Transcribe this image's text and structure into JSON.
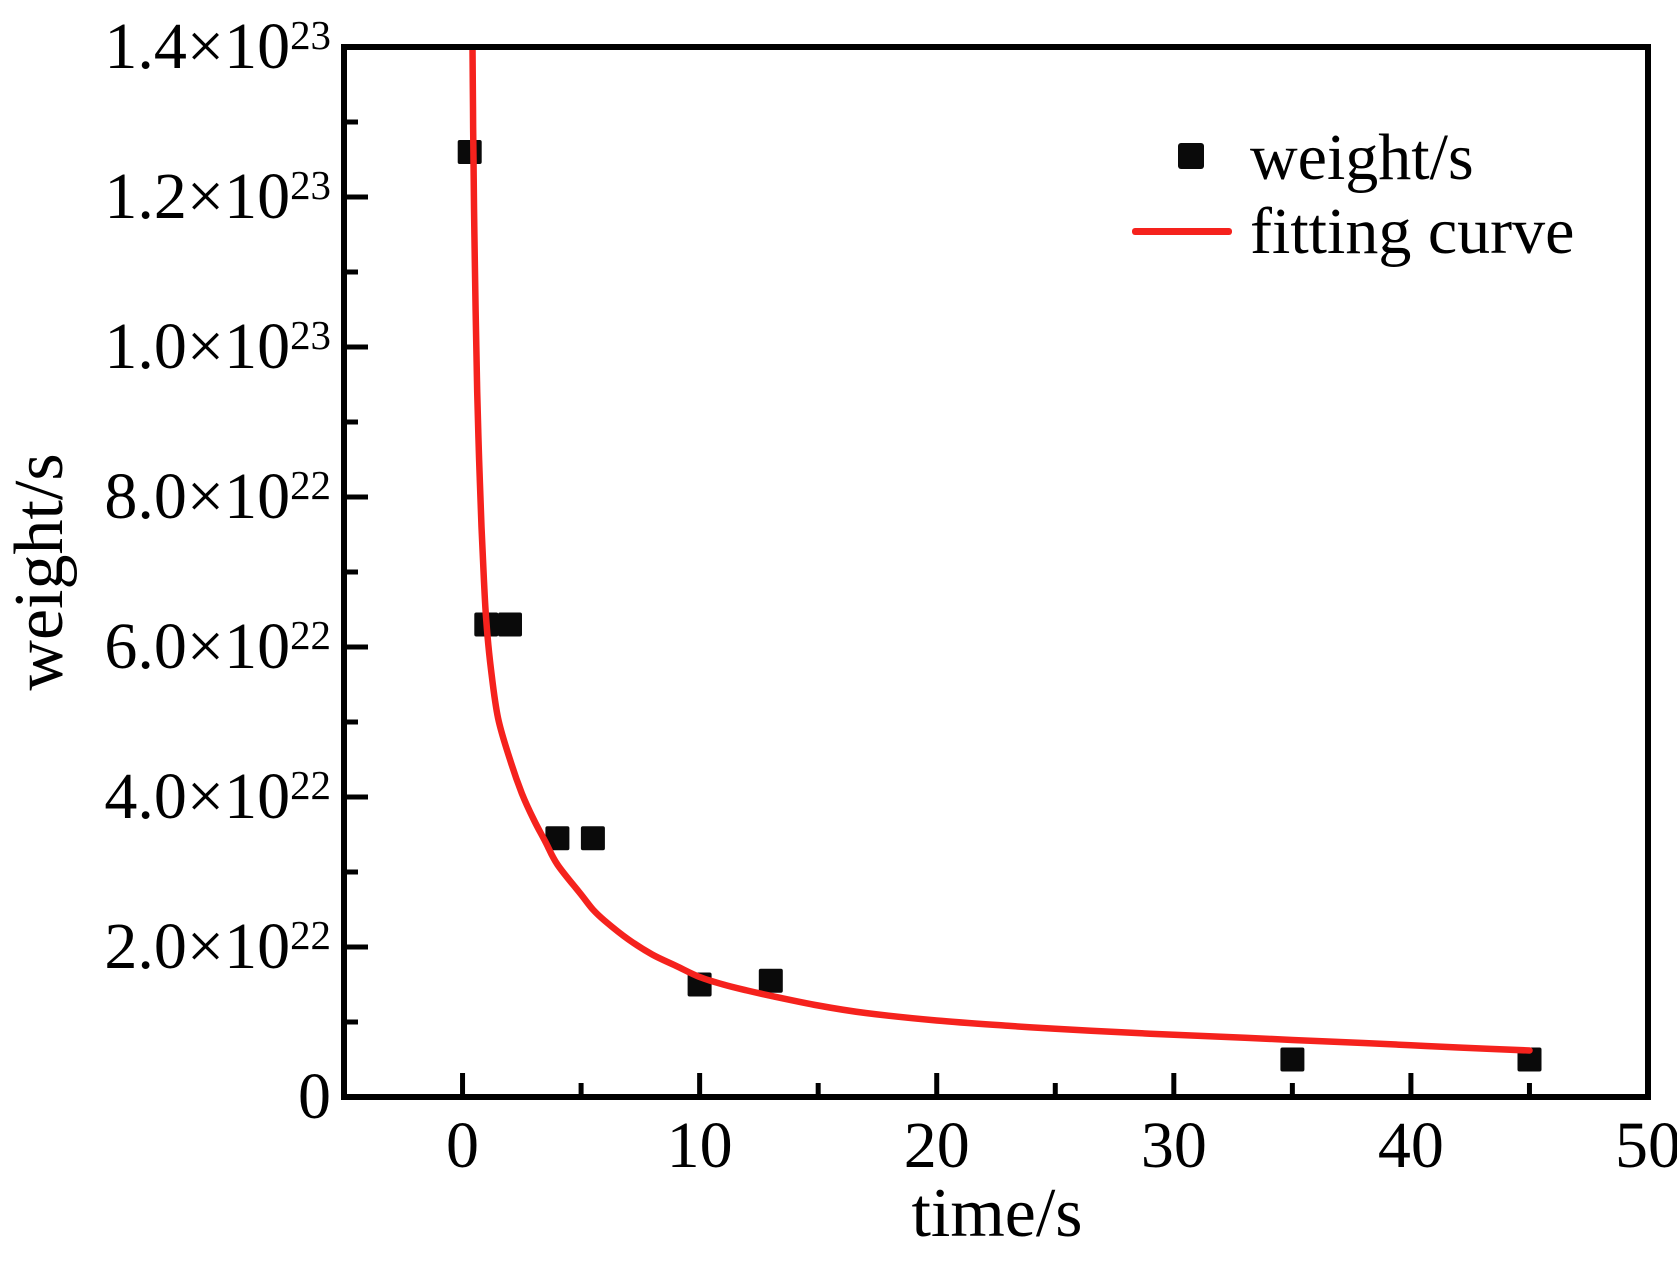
{
  "figure": {
    "background": "#ffffff",
    "axis_color": "#000000",
    "marker_color": "#0a0a0a",
    "curve_color": "#f5221d"
  },
  "legend": {
    "items": [
      {
        "label": "weight/s",
        "marker": "square",
        "color": "#0a0a0a"
      },
      {
        "label": "fitting curve",
        "marker": "line",
        "color": "#f5221d"
      }
    ]
  },
  "chart_data": {
    "type": "scatter",
    "title": "",
    "xlabel": "time/s",
    "ylabel": "weight/s",
    "xlim": [
      -5,
      50
    ],
    "ylim_e22": [
      0,
      14
    ],
    "grid": false,
    "legend_position": "upper-right-inside",
    "x_major_ticks": [
      {
        "v": 0,
        "label": "0"
      },
      {
        "v": 10,
        "label": "10"
      },
      {
        "v": 20,
        "label": "20"
      },
      {
        "v": 30,
        "label": "30"
      },
      {
        "v": 40,
        "label": "40"
      },
      {
        "v": 50,
        "label": "50"
      }
    ],
    "x_minor_ticks": [
      5,
      15,
      25,
      35,
      45
    ],
    "y_major_ticks": [
      {
        "v_e22": 0,
        "base": "0",
        "sup": ""
      },
      {
        "v_e22": 2,
        "base": "2.0×10",
        "sup": "22"
      },
      {
        "v_e22": 4,
        "base": "4.0×10",
        "sup": "22"
      },
      {
        "v_e22": 6,
        "base": "6.0×10",
        "sup": "22"
      },
      {
        "v_e22": 8,
        "base": "8.0×10",
        "sup": "22"
      },
      {
        "v_e22": 10,
        "base": "1.0×10",
        "sup": "23"
      },
      {
        "v_e22": 12,
        "base": "1.2×10",
        "sup": "23"
      },
      {
        "v_e22": 14,
        "base": "1.4×10",
        "sup": "23"
      }
    ],
    "y_minor_ticks_e22": [
      1,
      3,
      5,
      7,
      9,
      11,
      13
    ],
    "series": [
      {
        "name": "weight/s",
        "kind": "scatter",
        "marker": "square",
        "color": "#0a0a0a",
        "x_s": [
          0.3,
          1.0,
          2.0,
          4.0,
          5.5,
          10.0,
          13.0,
          35.0,
          45.0
        ],
        "y_1e22": [
          12.6,
          6.3,
          6.3,
          3.45,
          3.45,
          1.5,
          1.55,
          0.5,
          0.5
        ]
      },
      {
        "name": "fitting curve",
        "kind": "line",
        "color": "#f5221d",
        "x_s": [
          0.42,
          0.44,
          0.46,
          0.5,
          0.55,
          0.62,
          0.7,
          0.8,
          0.9,
          1.0,
          1.2,
          1.5,
          2.0,
          2.5,
          3.0,
          3.5,
          4.0,
          5.0,
          5.5,
          6.0,
          7.0,
          8.0,
          9.0,
          10.0,
          11.0,
          12.0,
          13.0,
          15.0,
          17.0,
          20.0,
          23.0,
          25.0,
          28.0,
          30.0,
          33.0,
          35.0,
          38.0,
          40.0,
          42.0,
          45.0
        ],
        "y_1e22": [
          14.0,
          13.2,
          12.5,
          11.5,
          10.5,
          9.4,
          8.5,
          7.6,
          6.9,
          6.35,
          5.7,
          5.05,
          4.5,
          4.05,
          3.7,
          3.4,
          3.1,
          2.7,
          2.5,
          2.35,
          2.1,
          1.9,
          1.75,
          1.6,
          1.5,
          1.42,
          1.35,
          1.22,
          1.12,
          1.02,
          0.95,
          0.91,
          0.86,
          0.83,
          0.79,
          0.76,
          0.72,
          0.69,
          0.66,
          0.62
        ]
      }
    ]
  }
}
